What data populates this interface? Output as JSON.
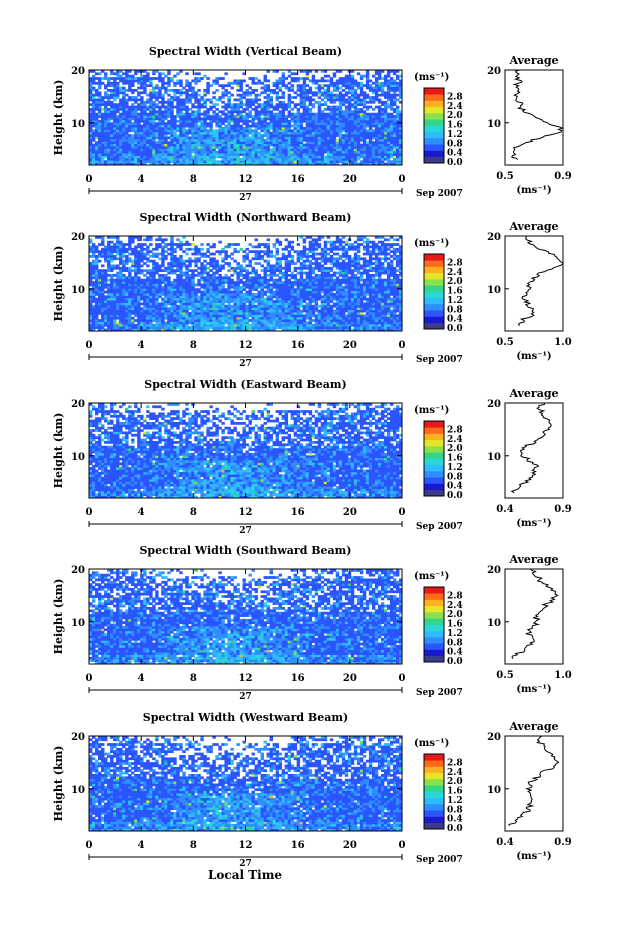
{
  "figure": {
    "xlabel": "Local Time",
    "date_label": "Sep 2007",
    "day_label": "27",
    "ylabel": "Height (km)",
    "unit_label": "(ms⁻¹)",
    "colorbar_ticks": [
      "0.0",
      "0.4",
      "0.8",
      "1.2",
      "1.6",
      "2.0",
      "2.4",
      "2.8"
    ],
    "xticks": [
      "0",
      "4",
      "8",
      "12",
      "16",
      "20",
      "0"
    ],
    "yticks": [
      "10",
      "20"
    ],
    "avg_title": "Average",
    "colorscale": [
      "#3b3b8a",
      "#1a1acc",
      "#2a55ff",
      "#2f8dff",
      "#2fbcff",
      "#28d8d8",
      "#33d68a",
      "#8ce04a",
      "#e6e628",
      "#ffb020",
      "#ff6a1a",
      "#e61a1a"
    ]
  },
  "chart_data": [
    {
      "type": "heatmap",
      "title": "Spectral Width (Vertical Beam)",
      "xlabel": "",
      "ylabel": "Height (km)",
      "xlim": [
        0,
        24
      ],
      "ylim": [
        2,
        20
      ],
      "zlim": [
        0,
        3.2
      ],
      "avg": {
        "title": "Average",
        "xlim": [
          0.5,
          0.9
        ],
        "xticks": [
          "0.5",
          "0.9"
        ],
        "xlabel": "(ms⁻¹)",
        "profile": [
          [
            0.58,
            3
          ],
          [
            0.55,
            4
          ],
          [
            0.56,
            5
          ],
          [
            0.62,
            6
          ],
          [
            0.72,
            7
          ],
          [
            0.86,
            8
          ],
          [
            0.88,
            9
          ],
          [
            0.8,
            10
          ],
          [
            0.7,
            11
          ],
          [
            0.65,
            12
          ],
          [
            0.6,
            13
          ],
          [
            0.6,
            14
          ],
          [
            0.58,
            15
          ],
          [
            0.6,
            16
          ],
          [
            0.58,
            17
          ],
          [
            0.6,
            18
          ],
          [
            0.57,
            19
          ],
          [
            0.6,
            20
          ]
        ]
      }
    },
    {
      "type": "heatmap",
      "title": "Spectral Width (Northward Beam)",
      "xlabel": "",
      "ylabel": "Height (km)",
      "xlim": [
        0,
        24
      ],
      "ylim": [
        2,
        20
      ],
      "zlim": [
        0,
        3.2
      ],
      "avg": {
        "title": "Average",
        "xlim": [
          0.5,
          1.0
        ],
        "xticks": [
          "0.5",
          "1.0"
        ],
        "xlabel": "(ms⁻¹)",
        "profile": [
          [
            0.6,
            3
          ],
          [
            0.65,
            4
          ],
          [
            0.72,
            5
          ],
          [
            0.76,
            6
          ],
          [
            0.7,
            7
          ],
          [
            0.66,
            8
          ],
          [
            0.68,
            9
          ],
          [
            0.72,
            10
          ],
          [
            0.7,
            11
          ],
          [
            0.74,
            12
          ],
          [
            0.8,
            13
          ],
          [
            0.92,
            14
          ],
          [
            1.0,
            15
          ],
          [
            0.95,
            16
          ],
          [
            0.85,
            17
          ],
          [
            0.78,
            18
          ],
          [
            0.7,
            19
          ],
          [
            0.68,
            20
          ]
        ]
      }
    },
    {
      "type": "heatmap",
      "title": "Spectral Width (Eastward Beam)",
      "xlabel": "",
      "ylabel": "Height (km)",
      "xlim": [
        0,
        24
      ],
      "ylim": [
        2,
        20
      ],
      "zlim": [
        0,
        3.2
      ],
      "avg": {
        "title": "Average",
        "xlim": [
          0.4,
          0.9
        ],
        "xticks": [
          "0.4",
          "0.9"
        ],
        "xlabel": "(ms⁻¹)",
        "profile": [
          [
            0.45,
            3
          ],
          [
            0.5,
            4
          ],
          [
            0.58,
            5
          ],
          [
            0.62,
            6
          ],
          [
            0.66,
            7
          ],
          [
            0.68,
            8
          ],
          [
            0.6,
            9
          ],
          [
            0.56,
            10
          ],
          [
            0.55,
            11
          ],
          [
            0.6,
            12
          ],
          [
            0.68,
            13
          ],
          [
            0.72,
            14
          ],
          [
            0.78,
            15
          ],
          [
            0.8,
            16
          ],
          [
            0.76,
            17
          ],
          [
            0.72,
            18
          ],
          [
            0.7,
            19
          ],
          [
            0.74,
            20
          ]
        ]
      }
    },
    {
      "type": "heatmap",
      "title": "Spectral Width (Southward Beam)",
      "xlabel": "",
      "ylabel": "Height (km)",
      "xlim": [
        0,
        24
      ],
      "ylim": [
        2,
        20
      ],
      "zlim": [
        0,
        3.2
      ],
      "avg": {
        "title": "Average",
        "xlim": [
          0.5,
          1.0
        ],
        "xticks": [
          "0.5",
          "1.0"
        ],
        "xlabel": "(ms⁻¹)",
        "profile": [
          [
            0.55,
            3
          ],
          [
            0.62,
            4
          ],
          [
            0.7,
            5
          ],
          [
            0.74,
            6
          ],
          [
            0.72,
            7
          ],
          [
            0.7,
            8
          ],
          [
            0.74,
            9
          ],
          [
            0.78,
            10
          ],
          [
            0.76,
            11
          ],
          [
            0.78,
            12
          ],
          [
            0.84,
            13
          ],
          [
            0.9,
            14
          ],
          [
            0.95,
            15
          ],
          [
            0.9,
            16
          ],
          [
            0.84,
            17
          ],
          [
            0.8,
            18
          ],
          [
            0.76,
            19
          ],
          [
            0.72,
            20
          ]
        ]
      }
    },
    {
      "type": "heatmap",
      "title": "Spectral Width (Westward Beam)",
      "xlabel": "Local Time",
      "ylabel": "Height (km)",
      "xlim": [
        0,
        24
      ],
      "ylim": [
        2,
        20
      ],
      "zlim": [
        0,
        3.2
      ],
      "avg": {
        "title": "Average",
        "xlim": [
          0.4,
          0.9
        ],
        "xticks": [
          "0.4",
          "0.9"
        ],
        "xlabel": "(ms⁻¹)",
        "profile": [
          [
            0.45,
            3
          ],
          [
            0.5,
            4
          ],
          [
            0.56,
            5
          ],
          [
            0.6,
            6
          ],
          [
            0.62,
            7
          ],
          [
            0.64,
            8
          ],
          [
            0.62,
            9
          ],
          [
            0.6,
            10
          ],
          [
            0.62,
            11
          ],
          [
            0.66,
            12
          ],
          [
            0.72,
            13
          ],
          [
            0.8,
            14
          ],
          [
            0.86,
            15
          ],
          [
            0.82,
            16
          ],
          [
            0.76,
            17
          ],
          [
            0.72,
            18
          ],
          [
            0.7,
            19
          ],
          [
            0.72,
            20
          ]
        ]
      }
    }
  ]
}
